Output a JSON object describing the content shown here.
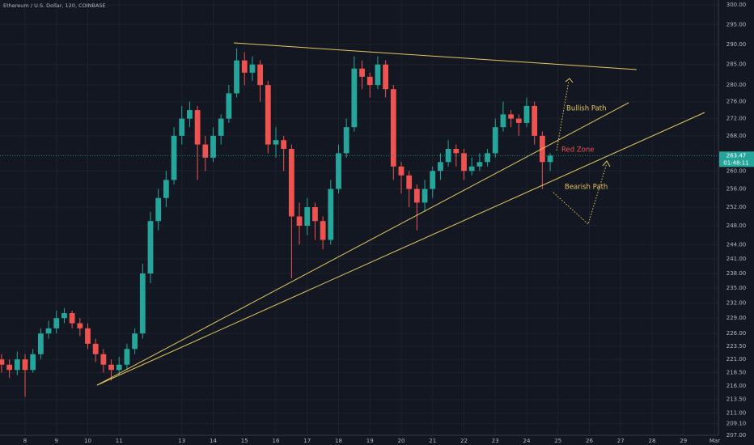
{
  "chart_data": {
    "type": "candlestick",
    "title": "Ethereum / U.S. Dollar, 120, COINBASE",
    "log_scale": true,
    "grid": true,
    "up_color": "#26a69a",
    "down_color": "#ef5350",
    "x": [
      7.25,
      7.5,
      7.75,
      8,
      8.25,
      8.5,
      8.75,
      9,
      9.25,
      9.5,
      9.75,
      10,
      10.25,
      10.5,
      10.75,
      11,
      11.25,
      11.5,
      11.75,
      12,
      12.25,
      12.5,
      12.75,
      13,
      13.25,
      13.5,
      13.75,
      14,
      14.25,
      14.5,
      14.75,
      15,
      15.25,
      15.5,
      15.75,
      16,
      16.25,
      16.5,
      16.75,
      17,
      17.25,
      17.5,
      17.75,
      18,
      18.25,
      18.5,
      18.75,
      19,
      19.25,
      19.5,
      19.75,
      20,
      20.25,
      20.5,
      20.75,
      21,
      21.25,
      21.5,
      21.75,
      22,
      22.25,
      22.5,
      22.75,
      23,
      23.25,
      23.5,
      23.75,
      24,
      24.25,
      24.5,
      24.75
    ],
    "open": [
      221,
      220,
      219,
      221,
      219,
      222,
      226,
      227,
      229,
      230,
      228,
      227,
      224,
      222,
      220,
      219,
      220,
      223,
      226,
      238,
      249,
      254,
      258,
      268,
      272,
      274,
      266,
      263,
      268,
      272,
      278,
      286,
      283,
      285,
      280,
      266,
      267,
      265,
      250,
      248,
      252,
      249,
      245,
      256,
      264,
      270,
      284,
      282,
      280,
      285,
      279,
      261,
      259,
      256,
      253,
      256,
      260,
      262,
      265,
      264,
      260,
      261,
      262,
      264,
      270,
      273,
      272,
      271,
      275,
      268,
      262
    ],
    "high": [
      222,
      221,
      222.5,
      222,
      223,
      227,
      228.5,
      230.5,
      231,
      230.5,
      229,
      228,
      225,
      223,
      221,
      221.5,
      224,
      227,
      240,
      251,
      256,
      260,
      270,
      275,
      276,
      275,
      268,
      270,
      273,
      280,
      289,
      288,
      287,
      286,
      281,
      270,
      268,
      266,
      253,
      254,
      253,
      250,
      258,
      266,
      272,
      287,
      286,
      283,
      287,
      286,
      280,
      262,
      260,
      257,
      258,
      261,
      264,
      267,
      266,
      265,
      263,
      264,
      265,
      272,
      276,
      274,
      273,
      277,
      276,
      269,
      264
    ],
    "low": [
      218.5,
      217.5,
      218,
      214,
      218.5,
      221,
      225,
      226,
      228,
      227,
      225.5,
      223,
      220.5,
      218.5,
      217,
      218,
      219,
      222,
      225,
      236,
      247,
      252,
      257,
      266,
      270,
      258,
      260,
      262,
      266,
      271,
      277,
      280,
      281,
      276,
      264,
      263,
      260,
      237,
      244,
      246,
      245,
      243,
      244,
      255,
      263,
      269,
      279,
      277,
      279,
      277,
      258,
      255,
      252,
      247,
      251,
      254,
      258,
      261,
      261,
      258,
      259,
      260,
      261,
      263,
      269,
      270,
      268,
      270,
      266,
      256,
      260
    ],
    "close": [
      220,
      219,
      221,
      219,
      222,
      226,
      227,
      229,
      230,
      228,
      227,
      224,
      222,
      220,
      219,
      220,
      223,
      226,
      238,
      249,
      254,
      258,
      268,
      272,
      274,
      266,
      263,
      268,
      272,
      278,
      286,
      283,
      285,
      280,
      266,
      267,
      265,
      250,
      248,
      252,
      249,
      245,
      256,
      264,
      270,
      284,
      282,
      280,
      285,
      279,
      261,
      259,
      256,
      253,
      256,
      260,
      262,
      265,
      264,
      260,
      261,
      262,
      264,
      270,
      273,
      272,
      271,
      275,
      268,
      262,
      263.47
    ],
    "xlim": [
      7.2,
      30.15
    ],
    "xticks": [
      8,
      9,
      10,
      11,
      13,
      14,
      15,
      16,
      17,
      18,
      19,
      20,
      21,
      22,
      23,
      24,
      25,
      26,
      27,
      28,
      29,
      {
        "value": 30,
        "label": "Mar"
      }
    ],
    "ylim": [
      207,
      301.3
    ],
    "yticks": [
      {
        "value": 300,
        "label": "300.00"
      },
      {
        "value": 295,
        "label": "295.00"
      },
      {
        "value": 290,
        "label": "290.00"
      },
      {
        "value": 285,
        "label": "285.00"
      },
      {
        "value": 280,
        "label": "280.00"
      },
      {
        "value": 276,
        "label": "276.00"
      },
      {
        "value": 272,
        "label": "272.00"
      },
      {
        "value": 268,
        "label": "268.00"
      },
      {
        "value": 260,
        "label": "260.00"
      },
      {
        "value": 256,
        "label": "256.00"
      },
      {
        "value": 252,
        "label": "252.00"
      },
      {
        "value": 248,
        "label": "248.00"
      },
      {
        "value": 244,
        "label": "244.00"
      },
      {
        "value": 241,
        "label": "241.00"
      },
      {
        "value": 238,
        "label": "238.00"
      },
      {
        "value": 235,
        "label": "235.00"
      },
      {
        "value": 232,
        "label": "232.00"
      },
      {
        "value": 229,
        "label": "229.00"
      },
      {
        "value": 226,
        "label": "226.00"
      },
      {
        "value": 223.5,
        "label": "223.50"
      },
      {
        "value": 221,
        "label": "221.00"
      },
      {
        "value": 218.5,
        "label": "218.50"
      },
      {
        "value": 216,
        "label": "216.00"
      },
      {
        "value": 213.5,
        "label": "213.50"
      },
      {
        "value": 211,
        "label": "211.00"
      },
      {
        "value": 209.1,
        "label": "209.10"
      },
      {
        "value": 207,
        "label": "207.00"
      }
    ],
    "last_price": 263.47,
    "countdown": "01:48:11",
    "annotations": [
      "Bullish Path",
      "Red Zone",
      "Bearish Path"
    ]
  }
}
